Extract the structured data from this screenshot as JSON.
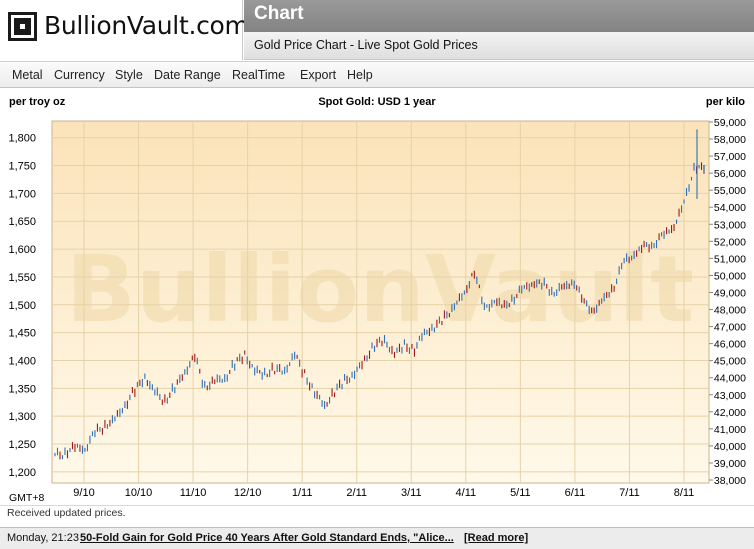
{
  "brand": {
    "logo_text": "BullionVault.com"
  },
  "header": {
    "title": "Chart",
    "subtitle": "Gold Price Chart - Live Spot Gold Prices"
  },
  "menu": [
    "Metal",
    "Currency",
    "Style",
    "Date Range",
    "RealTime",
    "Export",
    "Help"
  ],
  "status": "Received updated prices.",
  "news": {
    "time": "Monday, 21:23",
    "headline": "50-Fold Gain for Gold Price 40 Years After Gold Standard Ends, \"Alice...",
    "read_more": "[Read more]"
  },
  "colors": {
    "plot_top": "#fbe3b9",
    "plot_bottom": "#fff9ea",
    "up_bar": "#2f6fb5",
    "down_bar": "#a21818",
    "watermark": "#efd9a8"
  },
  "chart_data": {
    "type": "ohlc",
    "title": "Spot Gold: USD 1 year",
    "left_axis_label": "per troy oz",
    "right_axis_label": "per kilo",
    "timezone_label": "GMT+8",
    "watermark": "BullionVault",
    "x_ticks": [
      "9/10",
      "10/10",
      "11/10",
      "12/10",
      "1/11",
      "2/11",
      "3/11",
      "4/11",
      "5/11",
      "6/11",
      "7/11",
      "8/11"
    ],
    "y_left": {
      "min": 1180,
      "max": 1830,
      "ticks": [
        1200,
        1250,
        1300,
        1350,
        1400,
        1450,
        1500,
        1550,
        1600,
        1650,
        1700,
        1750,
        1800
      ]
    },
    "y_right": {
      "ticks": [
        "38,000",
        "39,000",
        "40,000",
        "41,000",
        "42,000",
        "43,000",
        "44,000",
        "45,000",
        "46,000",
        "47,000",
        "48,000",
        "49,000",
        "50,000",
        "51,000",
        "52,000",
        "53,000",
        "54,000",
        "55,000",
        "56,000",
        "57,000",
        "58,000",
        "59,000"
      ]
    },
    "grid": true,
    "close_by_week": [
      {
        "week": 0,
        "close": 1228
      },
      {
        "week": 1,
        "close": 1236
      },
      {
        "week": 2,
        "close": 1246
      },
      {
        "week": 3,
        "close": 1241
      },
      {
        "week": 4,
        "close": 1268
      },
      {
        "week": 5,
        "close": 1282
      },
      {
        "week": 6,
        "close": 1296
      },
      {
        "week": 7,
        "close": 1322
      },
      {
        "week": 8,
        "close": 1345
      },
      {
        "week": 9,
        "close": 1368
      },
      {
        "week": 10,
        "close": 1342
      },
      {
        "week": 11,
        "close": 1330
      },
      {
        "week": 12,
        "close": 1352
      },
      {
        "week": 13,
        "close": 1378
      },
      {
        "week": 14,
        "close": 1405
      },
      {
        "week": 15,
        "close": 1352
      },
      {
        "week": 16,
        "close": 1366
      },
      {
        "week": 17,
        "close": 1368
      },
      {
        "week": 18,
        "close": 1392
      },
      {
        "week": 19,
        "close": 1408
      },
      {
        "week": 20,
        "close": 1382
      },
      {
        "week": 21,
        "close": 1378
      },
      {
        "week": 22,
        "close": 1385
      },
      {
        "week": 23,
        "close": 1378
      },
      {
        "week": 24,
        "close": 1410
      },
      {
        "week": 25,
        "close": 1375
      },
      {
        "week": 26,
        "close": 1345
      },
      {
        "week": 27,
        "close": 1318
      },
      {
        "week": 28,
        "close": 1342
      },
      {
        "week": 29,
        "close": 1362
      },
      {
        "week": 30,
        "close": 1378
      },
      {
        "week": 31,
        "close": 1402
      },
      {
        "week": 32,
        "close": 1428
      },
      {
        "week": 33,
        "close": 1432
      },
      {
        "week": 34,
        "close": 1412
      },
      {
        "week": 35,
        "close": 1428
      },
      {
        "week": 36,
        "close": 1422
      },
      {
        "week": 37,
        "close": 1448
      },
      {
        "week": 38,
        "close": 1458
      },
      {
        "week": 39,
        "close": 1475
      },
      {
        "week": 40,
        "close": 1502
      },
      {
        "week": 41,
        "close": 1520
      },
      {
        "week": 42,
        "close": 1560
      },
      {
        "week": 43,
        "close": 1490
      },
      {
        "week": 44,
        "close": 1508
      },
      {
        "week": 45,
        "close": 1498
      },
      {
        "week": 46,
        "close": 1515
      },
      {
        "week": 47,
        "close": 1528
      },
      {
        "week": 48,
        "close": 1538
      },
      {
        "week": 49,
        "close": 1535
      },
      {
        "week": 50,
        "close": 1525
      },
      {
        "week": 51,
        "close": 1532
      },
      {
        "week": 52,
        "close": 1540
      },
      {
        "week": 53,
        "close": 1500
      },
      {
        "week": 54,
        "close": 1492
      },
      {
        "week": 55,
        "close": 1512
      },
      {
        "week": 56,
        "close": 1535
      },
      {
        "week": 57,
        "close": 1575
      },
      {
        "week": 58,
        "close": 1590
      },
      {
        "week": 59,
        "close": 1605
      },
      {
        "week": 60,
        "close": 1612
      },
      {
        "week": 61,
        "close": 1625
      },
      {
        "week": 62,
        "close": 1640
      },
      {
        "week": 63,
        "close": 1680
      },
      {
        "week": 64,
        "close": 1750
      },
      {
        "week": 65,
        "close": 1745
      }
    ]
  }
}
